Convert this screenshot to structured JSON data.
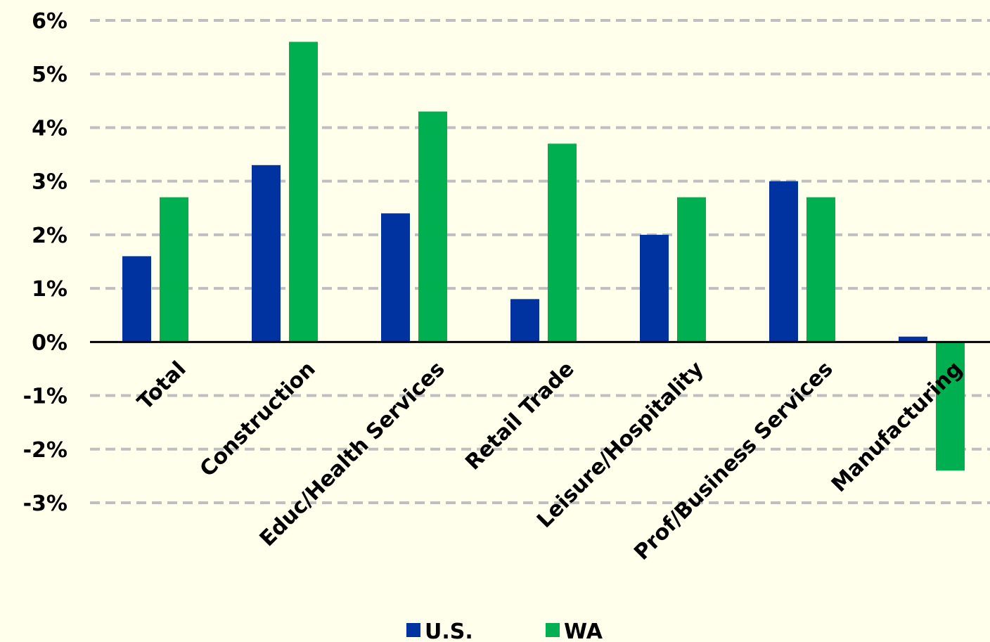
{
  "chart_data": {
    "type": "bar",
    "categories": [
      "Total",
      "Construction",
      "Educ/Health Services",
      "Retail Trade",
      "Leisure/Hospitality",
      "Prof/Business Services",
      "Manufacturing"
    ],
    "series": [
      {
        "name": "U.S.",
        "color": "#0033A0",
        "values": [
          1.6,
          3.3,
          2.4,
          0.8,
          2.0,
          3.0,
          0.1
        ]
      },
      {
        "name": "WA",
        "color": "#00B050",
        "values": [
          2.7,
          5.6,
          4.3,
          3.7,
          2.7,
          2.7,
          -2.4
        ]
      }
    ],
    "ylim": [
      -3,
      6
    ],
    "yticks": [
      "6%",
      "5%",
      "4%",
      "3%",
      "2%",
      "1%",
      "0%",
      "-1%",
      "-2%",
      "-3%"
    ],
    "ytick_values": [
      6,
      5,
      4,
      3,
      2,
      1,
      0,
      -1,
      -2,
      -3
    ],
    "grid": true,
    "grid_style": "dashed",
    "legend_position": "bottom",
    "title": "",
    "xlabel": "",
    "ylabel": ""
  },
  "colors": {
    "background": "#FFFFEB",
    "grid": "#BFBFBF",
    "axis": "#000000"
  }
}
